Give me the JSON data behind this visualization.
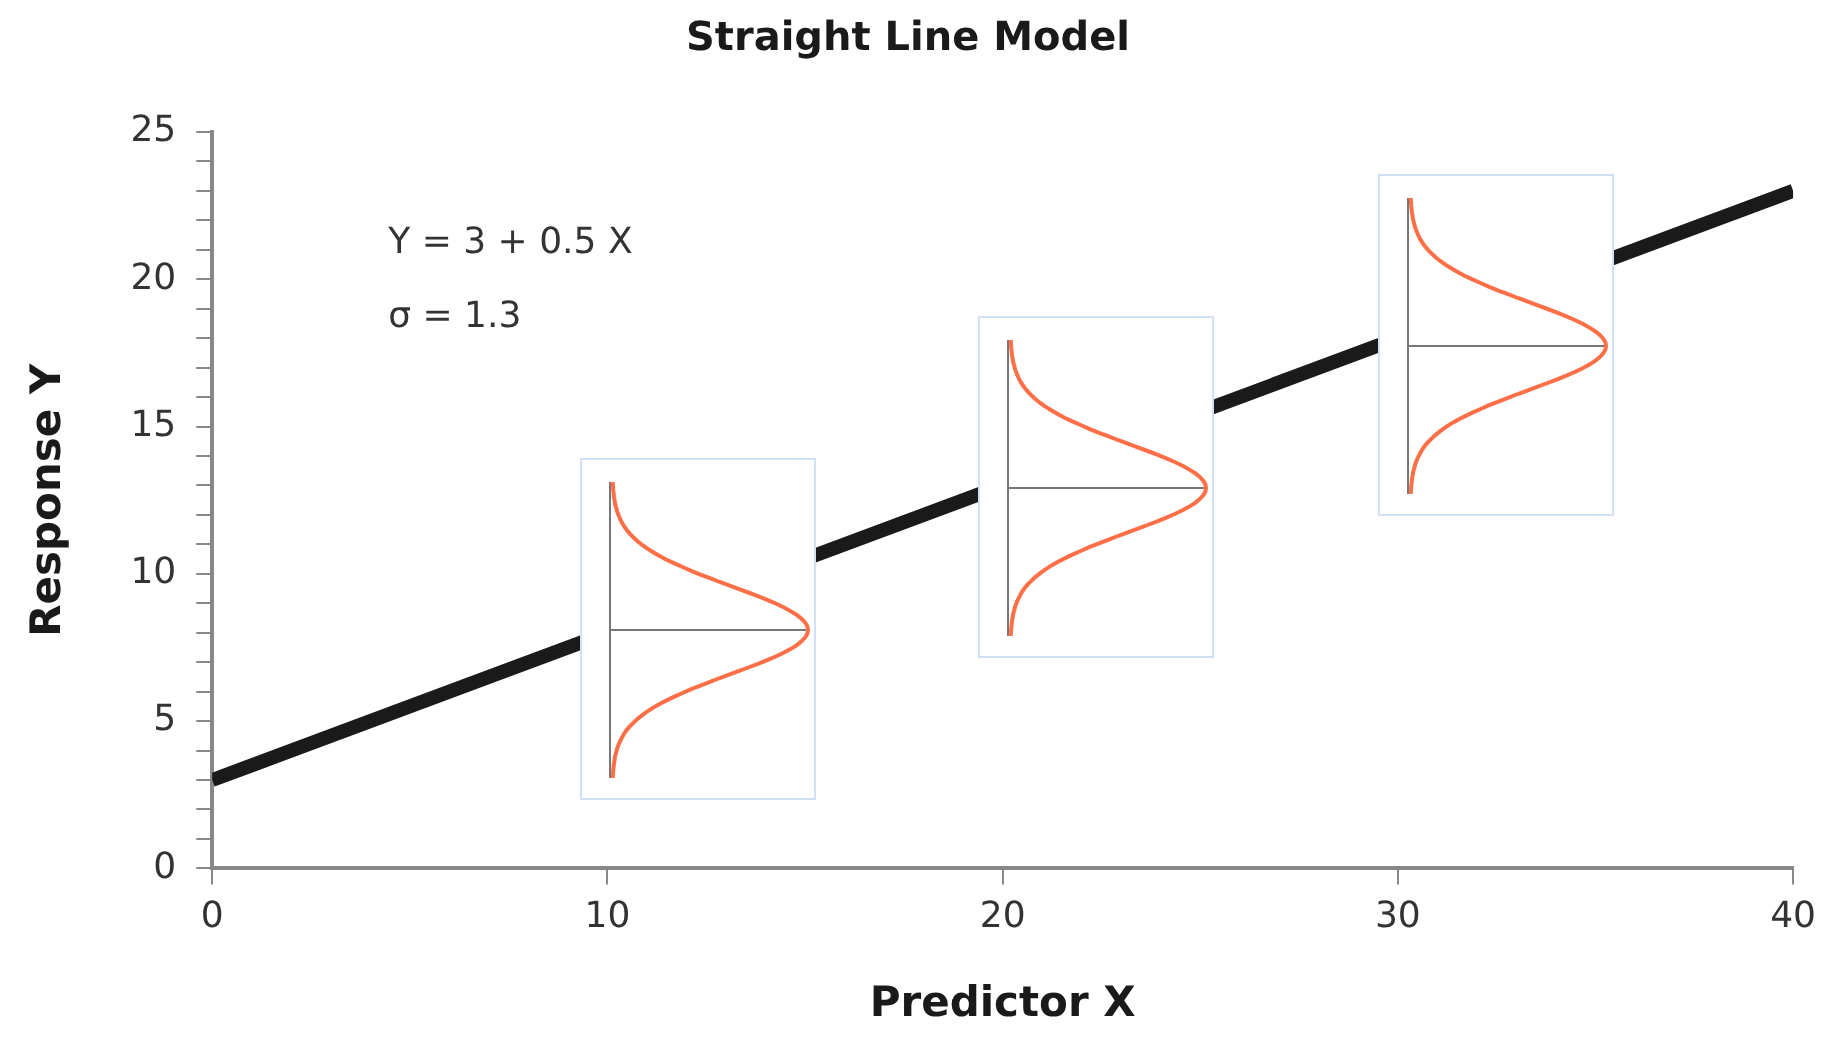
{
  "chart_data": {
    "type": "line",
    "title": "Straight Line Model",
    "xlabel": "Predictor X",
    "ylabel": "Response Y",
    "x": [
      0,
      40
    ],
    "series": [
      {
        "color": "#1a1a1a",
        "values": [
          3,
          23
        ]
      }
    ],
    "xlim": [
      0,
      40
    ],
    "xticks": [
      0,
      10,
      20,
      30,
      40
    ],
    "ylim": [
      0,
      25
    ],
    "yticks": [
      0,
      {
        "value": 1,
        "label": null
      },
      {
        "value": 2,
        "label": null
      },
      {
        "value": 3,
        "label": null
      },
      {
        "value": 4,
        "label": null
      },
      5,
      {
        "value": 6,
        "label": null
      },
      {
        "value": 7,
        "label": null
      },
      {
        "value": 8,
        "label": null
      },
      {
        "value": 9,
        "label": null
      },
      10,
      {
        "value": 11,
        "label": null
      },
      {
        "value": 12,
        "label": null
      },
      {
        "value": 13,
        "label": null
      },
      {
        "value": 14,
        "label": null
      },
      15,
      {
        "value": 16,
        "label": null
      },
      {
        "value": 17,
        "label": null
      },
      {
        "value": 18,
        "label": null
      },
      {
        "value": 19,
        "label": null
      },
      20,
      {
        "value": 21,
        "label": null
      },
      {
        "value": 22,
        "label": null
      },
      {
        "value": 23,
        "label": null
      },
      {
        "value": 24,
        "label": null
      },
      25
    ],
    "annotations": [
      "Y = 3 + 0.5 X",
      "σ = 1.3"
    ],
    "marker": "none",
    "line_style": "solid"
  }
}
